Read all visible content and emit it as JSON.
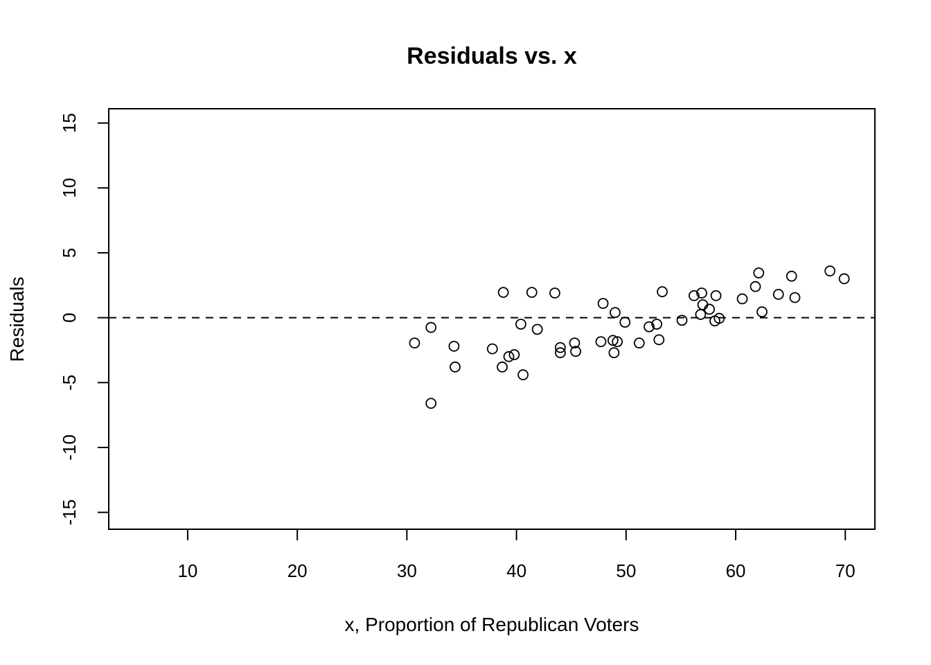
{
  "chart_data": {
    "type": "scatter",
    "title": "Residuals vs. x",
    "xlabel": "x, Proportion of Republican Voters",
    "ylabel": "Residuals",
    "xlim": [
      2.8,
      72.7
    ],
    "ylim": [
      -16.3,
      16.1
    ],
    "xticks": [
      10,
      20,
      30,
      40,
      50,
      60,
      70
    ],
    "yticks": [
      -15,
      -10,
      -5,
      0,
      5,
      10,
      15
    ],
    "xtick_labels": [
      "10",
      "20",
      "30",
      "40",
      "50",
      "60",
      "70"
    ],
    "ytick_labels": [
      "-15",
      "-10",
      "-5",
      "0",
      "5",
      "10",
      "15"
    ],
    "reference_line": {
      "y": 0,
      "style": "dashed"
    },
    "grid": false,
    "legend": "none",
    "point_style": "open-circle",
    "color": "#000000",
    "series": [
      {
        "x": [
          30.7,
          32.2,
          32.2,
          34.3,
          34.4,
          37.8,
          38.7,
          38.8,
          39.3,
          39.8,
          40.4,
          40.6,
          41.4,
          41.9,
          43.5,
          44.0,
          44.0,
          45.3,
          45.4,
          47.7,
          47.9,
          48.8,
          48.9,
          49.0,
          49.2,
          49.9,
          51.2,
          52.1,
          52.8,
          53.0,
          53.3,
          55.1,
          56.2,
          56.8,
          56.9,
          57.0,
          57.6,
          58.1,
          58.2,
          58.5,
          60.6,
          61.8,
          62.1,
          62.4,
          63.9,
          65.1,
          65.4,
          68.6,
          69.9
        ],
        "y": [
          -1.95,
          -0.75,
          -6.6,
          -2.2,
          -3.8,
          -2.4,
          -3.8,
          1.95,
          -3.0,
          -2.85,
          -0.5,
          -4.4,
          1.95,
          -0.9,
          1.9,
          -2.3,
          -2.7,
          -1.95,
          -2.6,
          -1.85,
          1.1,
          -1.75,
          -2.7,
          0.4,
          -1.85,
          -0.35,
          -1.95,
          -0.7,
          -0.5,
          -1.7,
          2.0,
          -0.2,
          1.7,
          0.25,
          1.9,
          1.0,
          0.65,
          -0.25,
          1.7,
          -0.05,
          1.45,
          2.4,
          3.45,
          0.45,
          1.8,
          3.2,
          1.55,
          3.6,
          3.0
        ]
      }
    ]
  }
}
